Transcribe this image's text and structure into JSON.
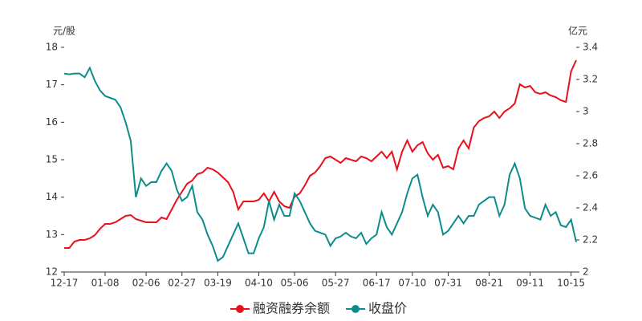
{
  "chart_data": {
    "type": "line",
    "y_label": "元/股",
    "y2_label": "亿元",
    "categories": [
      "12-17",
      null,
      null,
      null,
      null,
      null,
      null,
      null,
      "01-08",
      null,
      null,
      null,
      null,
      null,
      null,
      null,
      "02-06",
      null,
      null,
      null,
      null,
      null,
      null,
      "02-27",
      null,
      null,
      null,
      null,
      null,
      null,
      "03-19",
      null,
      null,
      null,
      null,
      null,
      null,
      null,
      "04-10",
      null,
      null,
      null,
      null,
      null,
      null,
      "05-06",
      null,
      null,
      null,
      null,
      null,
      null,
      null,
      "05-27",
      null,
      null,
      null,
      null,
      null,
      null,
      null,
      "06-17",
      null,
      null,
      null,
      null,
      null,
      null,
      "07-10",
      null,
      null,
      null,
      null,
      null,
      null,
      "07-31",
      null,
      null,
      null,
      null,
      null,
      null,
      null,
      "08-21",
      null,
      null,
      null,
      null,
      null,
      null,
      null,
      "09-11",
      null,
      null,
      null,
      null,
      null,
      null,
      null,
      "10-15",
      null
    ],
    "series": [
      {
        "name": "融资融券余额",
        "color": "#e8101a",
        "axis": "y2",
        "values": [
          2.15,
          2.15,
          2.19,
          2.2,
          2.2,
          2.21,
          2.23,
          2.27,
          2.3,
          2.3,
          2.31,
          2.33,
          2.35,
          2.355,
          2.33,
          2.32,
          2.31,
          2.31,
          2.31,
          2.34,
          2.33,
          2.39,
          2.45,
          2.5,
          2.55,
          2.57,
          2.61,
          2.62,
          2.65,
          2.64,
          2.62,
          2.59,
          2.56,
          2.5,
          2.39,
          2.44,
          2.44,
          2.44,
          2.45,
          2.49,
          2.44,
          2.5,
          2.44,
          2.41,
          2.4,
          2.47,
          2.49,
          2.54,
          2.6,
          2.62,
          2.66,
          2.71,
          2.72,
          2.7,
          2.68,
          2.71,
          2.7,
          2.69,
          2.72,
          2.71,
          2.69,
          2.72,
          2.75,
          2.71,
          2.75,
          2.64,
          2.75,
          2.82,
          2.75,
          2.79,
          2.81,
          2.74,
          2.7,
          2.73,
          2.65,
          2.66,
          2.64,
          2.77,
          2.82,
          2.77,
          2.9,
          2.94,
          2.96,
          2.97,
          3.0,
          2.96,
          3.0,
          3.02,
          3.05,
          3.17,
          3.15,
          3.16,
          3.12,
          3.11,
          3.12,
          3.1,
          3.09,
          3.07,
          3.06,
          3.25,
          3.32
        ]
      },
      {
        "name": "收盘价",
        "color": "#0e8c8c",
        "values": [
          17.3,
          17.28,
          17.3,
          17.3,
          17.2,
          17.45,
          17.1,
          16.85,
          16.7,
          16.65,
          16.6,
          16.4,
          16.0,
          15.5,
          14.0,
          14.5,
          14.3,
          14.4,
          14.4,
          14.7,
          14.9,
          14.7,
          14.2,
          13.9,
          14.0,
          14.3,
          13.6,
          13.4,
          13.0,
          12.7,
          12.3,
          12.4,
          12.7,
          13.0,
          13.3,
          12.9,
          12.5,
          12.5,
          12.9,
          13.2,
          13.9,
          13.4,
          13.8,
          13.5,
          13.5,
          14.1,
          13.9,
          13.6,
          13.3,
          13.1,
          13.05,
          13.0,
          12.7,
          12.9,
          12.95,
          13.05,
          12.95,
          12.9,
          13.05,
          12.75,
          12.9,
          13.0,
          13.6,
          13.2,
          13.0,
          13.3,
          13.6,
          14.1,
          14.5,
          14.6,
          14.0,
          13.5,
          13.8,
          13.6,
          13.0,
          13.1,
          13.3,
          13.5,
          13.3,
          13.5,
          13.5,
          13.8,
          13.9,
          14.0,
          14.0,
          13.5,
          13.8,
          14.6,
          14.9,
          14.5,
          13.7,
          13.5,
          13.45,
          13.4,
          13.8,
          13.5,
          13.6,
          13.25,
          13.2,
          13.4,
          12.8
        ]
      }
    ],
    "ylim": [
      12,
      18
    ],
    "yticks": [
      12,
      13,
      14,
      15,
      16,
      17,
      18
    ],
    "y2lim": [
      2,
      3.4
    ],
    "y2ticks": [
      2,
      2.2,
      2.4,
      2.6,
      2.8,
      3,
      3.2,
      3.4
    ],
    "legend": "bottom"
  }
}
